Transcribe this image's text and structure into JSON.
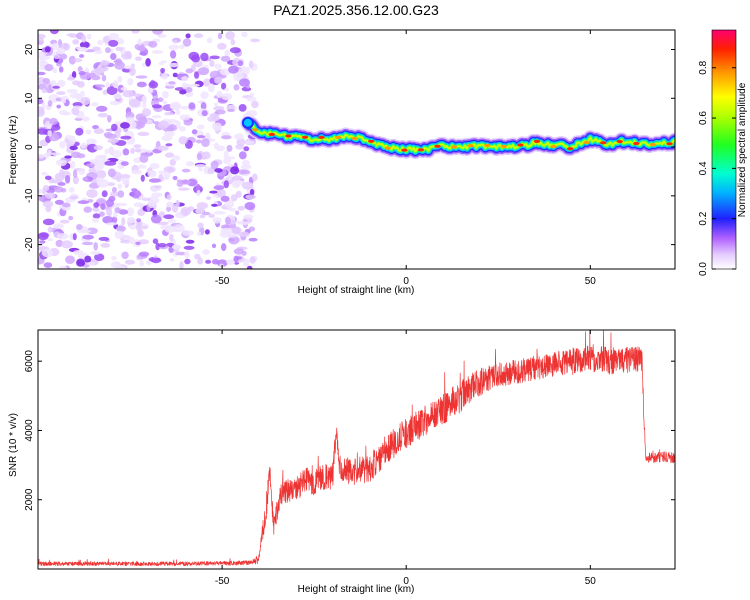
{
  "title": "PAZ1.2025.356.12.00.G23",
  "chart_data": [
    {
      "type": "heatmap",
      "title": "PAZ1.2025.356.12.00.G23",
      "xlabel": "Height of straight line (km)",
      "ylabel": "Frequency (Hz)",
      "xlim": [
        -100,
        73
      ],
      "ylim": [
        -25,
        24
      ],
      "xticks": [
        -50,
        0,
        50
      ],
      "yticks": [
        -20,
        -10,
        0,
        10,
        20
      ],
      "noise_region_x": [
        -100,
        -41
      ],
      "ridge_x": [
        -43,
        -40,
        -35,
        -30,
        -25,
        -20,
        -15,
        -10,
        -5,
        0,
        5,
        10,
        15,
        20,
        25,
        30,
        35,
        40,
        45,
        50,
        55,
        60,
        65,
        70,
        73
      ],
      "ridge_freq": [
        5.0,
        3.0,
        2.5,
        2.0,
        1.5,
        1.6,
        2.4,
        1.2,
        0.0,
        -0.5,
        -0.6,
        0.2,
        0.0,
        0.3,
        0.0,
        0.0,
        0.8,
        0.5,
        0.0,
        1.5,
        0.6,
        1.3,
        0.5,
        0.9,
        1.0
      ],
      "colorbar": {
        "label": "Normalized spectral amplitude",
        "range": [
          0.0,
          0.95
        ],
        "ticks": [
          "0.0",
          "0.2",
          "0.4",
          "0.6",
          "0.8"
        ],
        "tick_values": [
          0.0,
          0.2,
          0.4,
          0.6,
          0.8
        ]
      }
    },
    {
      "type": "line",
      "xlabel": "Height of straight line (km)",
      "ylabel": "SNR (10 * v/v)",
      "xlim": [
        -100,
        73
      ],
      "ylim": [
        0,
        6900
      ],
      "xticks": [
        -50,
        0,
        50
      ],
      "yticks": [
        2000,
        4000,
        6000
      ],
      "line_color": "#ee3333",
      "series": [
        {
          "name": "SNR",
          "x": [
            -100,
            -60,
            -42,
            -40,
            -38,
            -37,
            -36,
            -34,
            -30,
            -27,
            -25,
            -20,
            -19,
            -18,
            -15,
            -10,
            -5,
            0,
            5,
            10,
            15,
            20,
            25,
            30,
            35,
            40,
            45,
            50,
            55,
            60,
            64,
            65,
            66,
            70,
            73
          ],
          "y": [
            150,
            150,
            180,
            300,
            1800,
            2800,
            1200,
            2200,
            2300,
            2600,
            2500,
            2700,
            4000,
            2900,
            2800,
            2900,
            3500,
            3900,
            4300,
            4600,
            5000,
            5400,
            5600,
            5700,
            5800,
            5900,
            6000,
            6100,
            6000,
            6050,
            6000,
            3300,
            3200,
            3250,
            3200
          ],
          "noise": [
            60,
            60,
            60,
            150,
            400,
            300,
            300,
            350,
            350,
            350,
            400,
            400,
            300,
            350,
            400,
            400,
            450,
            450,
            450,
            450,
            450,
            400,
            350,
            350,
            350,
            350,
            400,
            400,
            400,
            400,
            400,
            150,
            150,
            150,
            150
          ]
        }
      ]
    }
  ]
}
